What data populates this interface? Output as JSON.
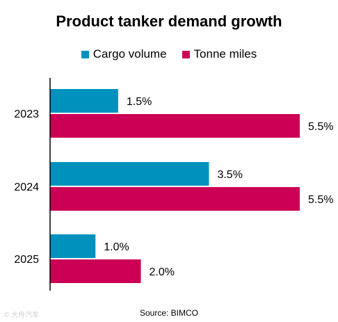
{
  "chart_data": {
    "type": "bar",
    "orientation": "horizontal",
    "title": "Product tanker demand growth",
    "categories": [
      "2023",
      "2024",
      "2025"
    ],
    "series": [
      {
        "name": "Cargo volume",
        "values": [
          1.5,
          3.5,
          1.0
        ],
        "labels": [
          "1.5%",
          "3.5%",
          "1.0%"
        ],
        "color": "#0092BC"
      },
      {
        "name": "Tonne miles",
        "values": [
          5.5,
          5.5,
          2.0
        ],
        "labels": [
          "5.5%",
          "5.5%",
          "2.0%"
        ],
        "color": "#CC0055"
      }
    ],
    "xlim": [
      0,
      5.5
    ],
    "grid": false,
    "legend_position": "top"
  },
  "source": "Source: BIMCO",
  "watermark": "© 大舟汽车"
}
